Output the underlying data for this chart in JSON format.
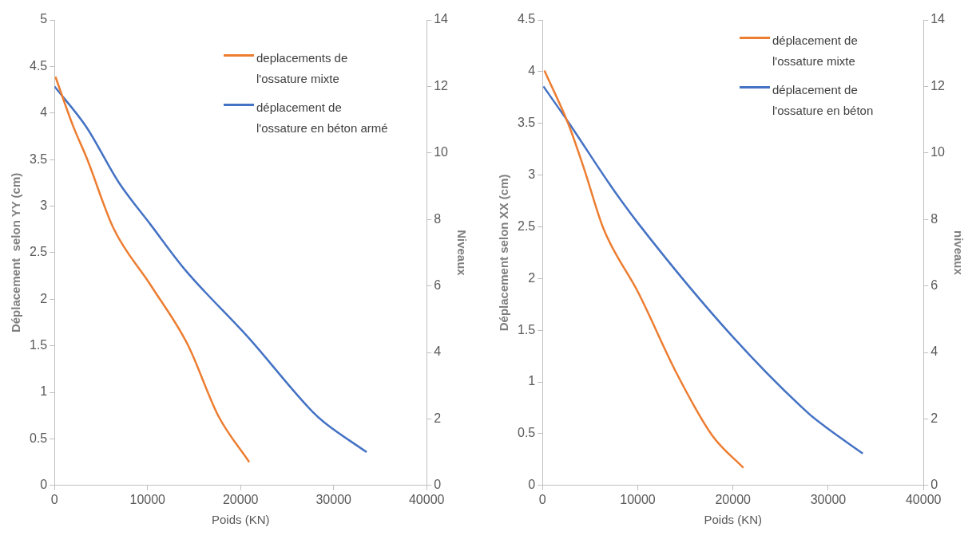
{
  "chart_data": [
    {
      "type": "line",
      "xlabel": "Poids (KN)",
      "ylabel": "Déplacement  selon YY (cm)",
      "y2label": "Niveaux",
      "xlim": [
        0,
        40000
      ],
      "xticks": [
        0,
        10000,
        20000,
        30000,
        40000
      ],
      "ylim": [
        0,
        5
      ],
      "yticks": [
        0,
        0.5,
        1,
        1.5,
        2,
        2.5,
        3,
        3.5,
        4,
        4.5,
        5
      ],
      "y2lim": [
        0,
        14
      ],
      "y2ticks": [
        0,
        2,
        4,
        6,
        8,
        10,
        12,
        14
      ],
      "grid": false,
      "legend": "top right",
      "marker": "none",
      "series": [
        {
          "name": "deplacements de l'ossature mixte",
          "color": "#ed7d31",
          "x": [
            100,
            2000,
            3450,
            6350,
            10340,
            14330,
            17590,
            20930
          ],
          "values": [
            4.39,
            3.86,
            3.52,
            2.76,
            2.15,
            1.51,
            0.75,
            0.25
          ]
        },
        {
          "name": "déplacement de l'ossature en béton armé",
          "color": "#4472c4",
          "axis": "y2",
          "x": [
            0,
            3450,
            6890,
            10340,
            13960,
            20860,
            27750,
            29020,
            33550
          ],
          "values": [
            12,
            10.77,
            9.12,
            7.84,
            6.51,
            4.44,
            2.21,
            1.89,
            1
          ]
        }
      ]
    },
    {
      "type": "line",
      "xlabel": "Poids (KN)",
      "ylabel": "Déplacement selon XX (cm)",
      "y2label": "niveaux",
      "xlim": [
        0,
        40000
      ],
      "xticks": [
        0,
        10000,
        20000,
        30000,
        40000
      ],
      "ylim": [
        0,
        4.5
      ],
      "yticks": [
        0,
        0.5,
        1,
        1.5,
        2,
        2.5,
        3,
        3.5,
        4,
        4.5
      ],
      "y2lim": [
        0,
        14
      ],
      "y2ticks": [
        0,
        2,
        4,
        6,
        8,
        10,
        12,
        14
      ],
      "grid": false,
      "legend": "top right",
      "marker": "none",
      "series": [
        {
          "name": "déplacement de l'ossature mixte",
          "color": "#ed7d31",
          "x": [
            200,
            2730,
            4370,
            6410,
            10080,
            14160,
            17840,
            21100
          ],
          "values": [
            4.01,
            3.49,
            3.06,
            2.48,
            1.86,
            1.07,
            0.48,
            0.17
          ]
        },
        {
          "name": "déplacement de l'ossature en béton",
          "color": "#4472c4",
          "axis": "y2",
          "x": [
            100,
            2730,
            7220,
            10080,
            19880,
            28040,
            29670,
            33630
          ],
          "values": [
            12,
            10.92,
            8.99,
            7.87,
            4.5,
            2.14,
            1.77,
            0.96
          ]
        }
      ]
    }
  ]
}
